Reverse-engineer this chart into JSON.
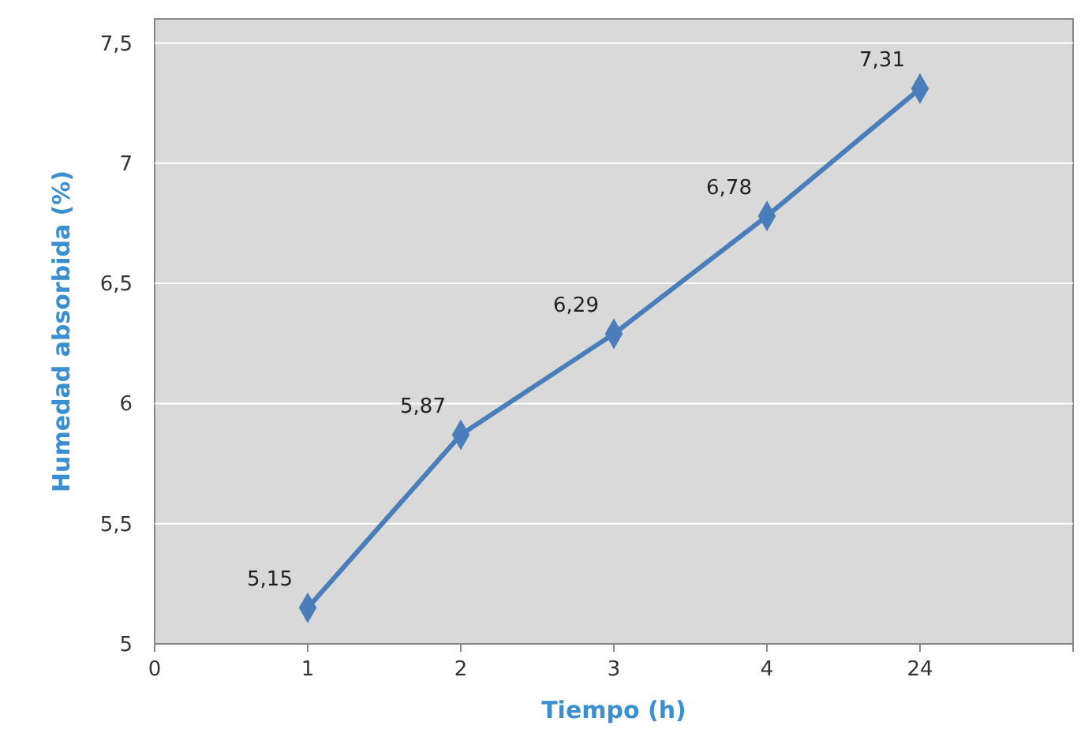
{
  "chart_data": {
    "type": "line",
    "xlabel": "Tiempo (h)",
    "ylabel": "Humedad absorbida (%)",
    "categories": [
      "0",
      "1",
      "2",
      "3",
      "4",
      "24",
      null
    ],
    "series": [
      {
        "color": "#4a7ebb",
        "values": [
          null,
          5.15,
          5.87,
          6.29,
          6.78,
          7.31,
          null
        ],
        "value_labels": [
          null,
          "5,15",
          "5,87",
          "6,29",
          "6,78",
          "7,31",
          null
        ]
      }
    ],
    "ylim": [
      5,
      7.6
    ],
    "yticks": [
      5,
      {
        "value": 5.5,
        "label": "5,5"
      },
      6,
      {
        "value": 6.5,
        "label": "6,5"
      },
      7,
      {
        "value": 7.5,
        "label": "7,5"
      }
    ],
    "grid": "y",
    "marker": "diamond"
  }
}
